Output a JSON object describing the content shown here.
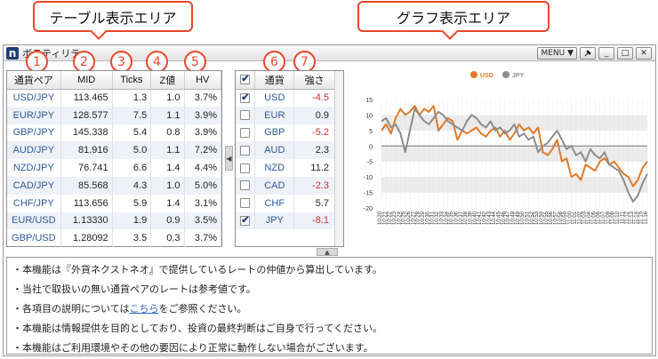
{
  "callouts": {
    "left": "テーブル表示エリア",
    "right": "グラフ表示エリア"
  },
  "window": {
    "title": "ボラティリティ",
    "menu_label": "MENU ▼",
    "pin_icon": "pin-icon",
    "minimize": "_",
    "maximize": "□",
    "close": "✕"
  },
  "markers": [
    "1",
    "2",
    "3",
    "4",
    "5",
    "6",
    "7"
  ],
  "rates_table": {
    "headers": [
      "通貨ペア",
      "MID",
      "Ticks",
      "Z値",
      "HV"
    ],
    "rows": [
      {
        "pair": "USD/JPY",
        "mid": "113.465",
        "ticks": "1.3",
        "z": "1.0",
        "hv": "3.7%"
      },
      {
        "pair": "EUR/JPY",
        "mid": "128.577",
        "ticks": "7.5",
        "z": "1.1",
        "hv": "3.9%"
      },
      {
        "pair": "GBP/JPY",
        "mid": "145.338",
        "ticks": "5.4",
        "z": "0.8",
        "hv": "3.9%"
      },
      {
        "pair": "AUD/JPY",
        "mid": "81.916",
        "ticks": "5.0",
        "z": "1.1",
        "hv": "7.2%"
      },
      {
        "pair": "NZD/JPY",
        "mid": "76.741",
        "ticks": "6.6",
        "z": "1.4",
        "hv": "4.4%"
      },
      {
        "pair": "CAD/JPY",
        "mid": "85.568",
        "ticks": "4.3",
        "z": "1.0",
        "hv": "5.0%"
      },
      {
        "pair": "CHF/JPY",
        "mid": "113.656",
        "ticks": "5.9",
        "z": "1.4",
        "hv": "3.1%"
      },
      {
        "pair": "EUR/USD",
        "mid": "1.13330",
        "ticks": "1.9",
        "z": "0.9",
        "hv": "3.5%"
      },
      {
        "pair": "GBP/USD",
        "mid": "1.28092",
        "ticks": "3.5",
        "z": "0.3",
        "hv": "3.7%"
      }
    ]
  },
  "strength_table": {
    "headers": [
      "✔",
      "通貨",
      "強さ"
    ],
    "rows": [
      {
        "checked": true,
        "ccy": "USD",
        "value": "-4.5",
        "negative": true
      },
      {
        "checked": false,
        "ccy": "EUR",
        "value": "0.9",
        "negative": false
      },
      {
        "checked": false,
        "ccy": "GBP",
        "value": "-5.2",
        "negative": true
      },
      {
        "checked": false,
        "ccy": "AUD",
        "value": "2.3",
        "negative": false
      },
      {
        "checked": false,
        "ccy": "NZD",
        "value": "11.2",
        "negative": false
      },
      {
        "checked": false,
        "ccy": "CAD",
        "value": "-2.3",
        "negative": true
      },
      {
        "checked": false,
        "ccy": "CHF",
        "value": "5.7",
        "negative": false
      },
      {
        "checked": true,
        "ccy": "JPY",
        "value": "-8.1",
        "negative": true
      }
    ]
  },
  "colors": {
    "accent_red": "#e8472b",
    "usd_series": "#e07a2a",
    "jpy_series": "#8c8c8c",
    "pair_text": "#2c5aa0",
    "negative": "#d32f2f"
  },
  "chart_data": {
    "type": "line",
    "ylim": [
      -20,
      15
    ],
    "yticks": [
      15,
      10,
      5,
      0,
      -5,
      -10,
      -15,
      -20
    ],
    "grid": true,
    "legend_position": "top-center",
    "x": [
      "10:20",
      "10:21",
      "10:22",
      "10:23",
      "10:24",
      "10:25",
      "10:26",
      "10:27",
      "10:28",
      "10:29",
      "10:30",
      "10:31",
      "10:32",
      "10:33",
      "10:34",
      "10:35",
      "10:36",
      "10:37",
      "10:38",
      "10:39",
      "10:40",
      "10:41",
      "10:42",
      "10:43",
      "10:44",
      "10:45",
      "10:46",
      "10:47",
      "10:48",
      "10:49",
      "10:50",
      "10:51",
      "10:52",
      "10:53",
      "10:54",
      "10:55",
      "10:56",
      "10:57",
      "10:58",
      "10:59",
      "11:00",
      "11:01",
      "11:02",
      "11:03",
      "11:04",
      "11:05",
      "11:06",
      "11:07",
      "11:08",
      "11:09",
      "11:10",
      "11:11",
      "11:12",
      "11:13",
      "11:14",
      "11:15",
      "11:16"
    ],
    "series": [
      {
        "name": "USD",
        "color": "#e07a2a",
        "values": [
          5,
          7,
          4,
          9,
          12,
          10,
          11,
          13,
          10,
          12,
          11,
          13,
          5,
          7,
          9,
          8,
          2,
          5,
          4,
          5,
          6,
          4,
          3,
          5,
          6,
          3,
          5,
          2,
          4,
          7,
          5,
          6,
          4,
          6,
          -2,
          -3,
          -1,
          2,
          -5,
          -4,
          -10,
          -9,
          -11,
          -6,
          -7,
          -8,
          -5,
          -4,
          -6,
          -5,
          -7,
          -9,
          -10,
          -13,
          -11,
          -7,
          -5
        ]
      },
      {
        "name": "JPY",
        "color": "#8c8c8c",
        "values": [
          8,
          9,
          6,
          7,
          4,
          -2,
          5,
          12,
          10,
          8,
          7,
          9,
          11,
          10,
          8,
          7,
          6,
          5,
          8,
          10,
          9,
          7,
          6,
          8,
          5,
          6,
          4,
          5,
          7,
          3,
          4,
          2,
          3,
          -2,
          0,
          1,
          3,
          5,
          2,
          -1,
          0,
          -3,
          -2,
          -5,
          -1,
          -3,
          -4,
          -2,
          -6,
          -7,
          -8,
          -11,
          -15,
          -18,
          -16,
          -12,
          -9
        ]
      }
    ]
  },
  "notes": {
    "n1": "・本機能は『外貨ネクストネオ』で提供しているレートの仲値から算出しています。",
    "n2": "・当社で取扱いの無い通貨ペアのレートは参考値です。",
    "n3_pre": "・各項目の説明については",
    "n3_link": "こちら",
    "n3_post": "をご参照ください。",
    "n4": "・本機能は情報提供を目的としており、投資の最終判断はご自身で行ってください。",
    "n5": "・本機能はご利用環境やその他の要因により正常に動作しない場合がございます。"
  }
}
